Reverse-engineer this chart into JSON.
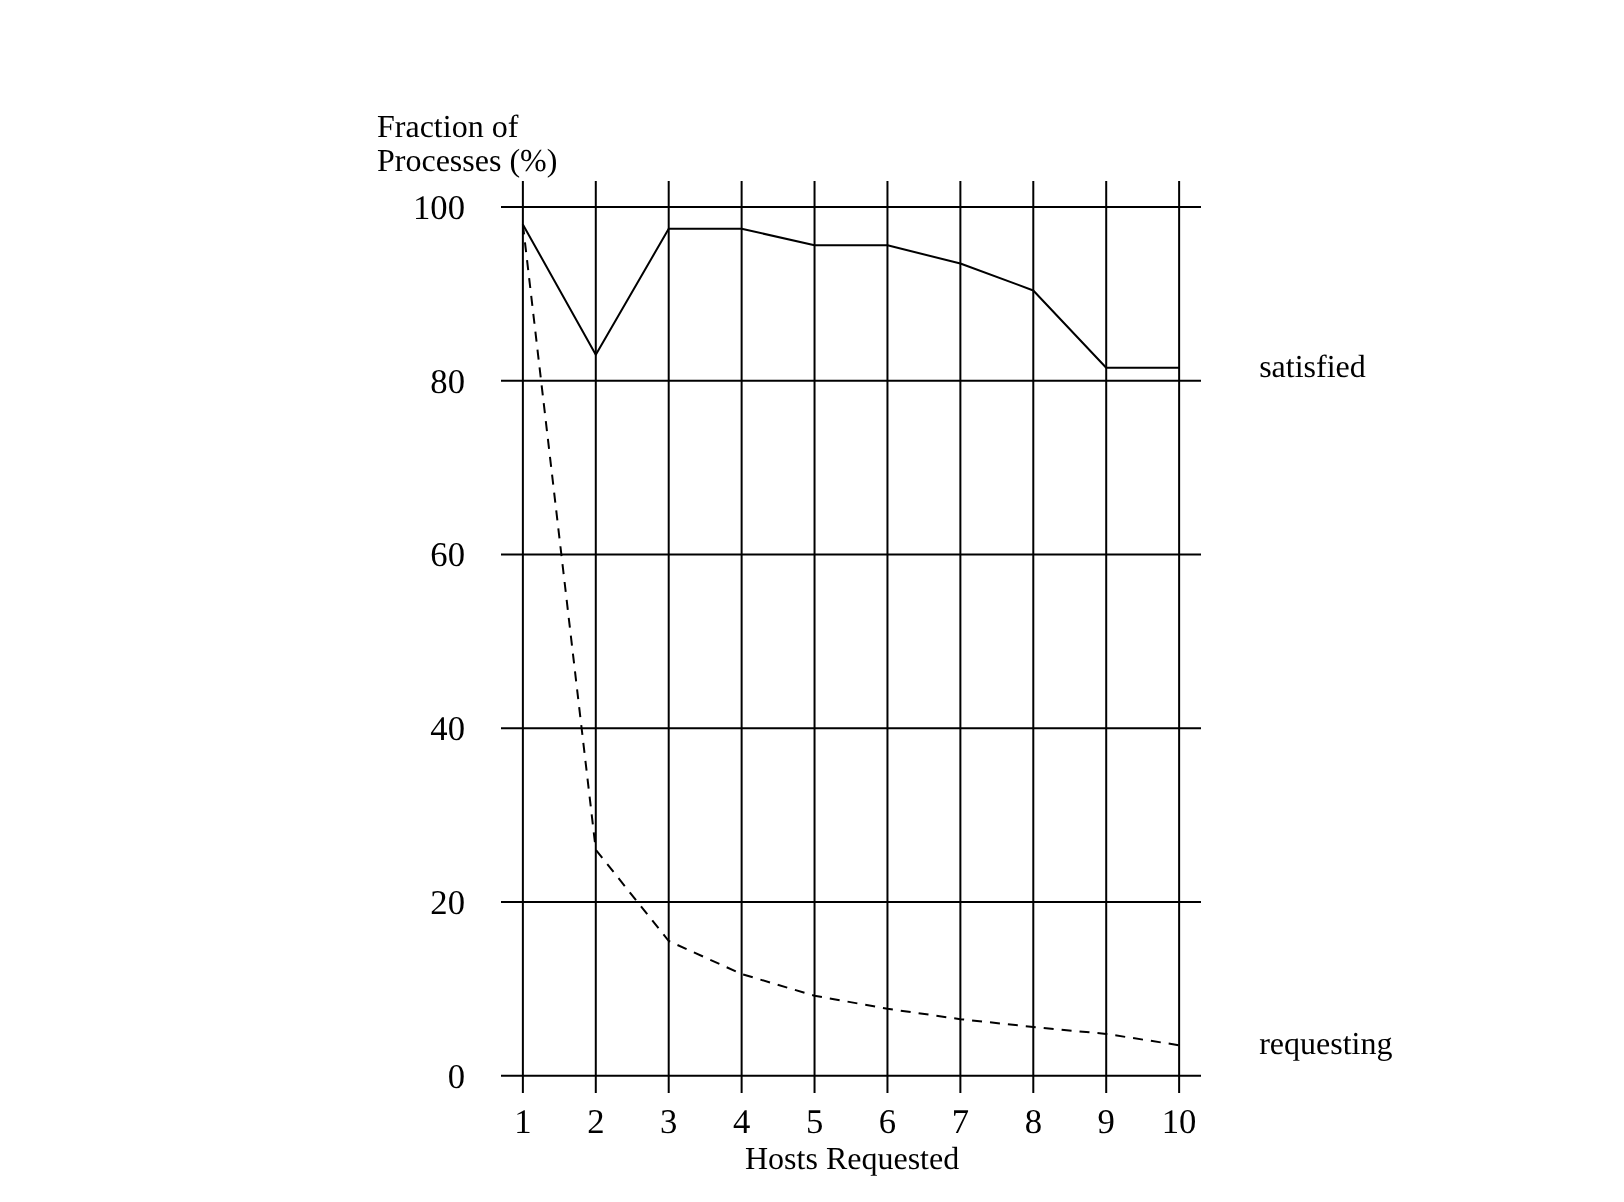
{
  "chart_data": {
    "type": "line",
    "ylabel": "Fraction of\nProcesses (%)",
    "xlabel": "Hosts Requested",
    "x": [
      1,
      2,
      3,
      4,
      5,
      6,
      7,
      8,
      9,
      10
    ],
    "series": [
      {
        "name": "satisfied",
        "color": "#000000",
        "line_style": "solid",
        "values": [
          98,
          83,
          97.5,
          97.5,
          95.6,
          95.6,
          93.5,
          90.4,
          81.5,
          81.5
        ]
      },
      {
        "name": "requesting",
        "color": "#000000",
        "line_style": "dashed",
        "values": [
          98,
          26,
          15.5,
          11.7,
          9.2,
          7.7,
          6.5,
          5.6,
          4.8,
          3.5
        ]
      }
    ],
    "xlim": [
      0.7,
      10.3
    ],
    "ylim": [
      -2,
      103
    ],
    "xticks": [
      1,
      2,
      3,
      4,
      5,
      6,
      7,
      8,
      9,
      10
    ],
    "yticks": [
      0,
      20,
      40,
      60,
      80,
      100
    ],
    "grid": true,
    "marker": "none"
  }
}
